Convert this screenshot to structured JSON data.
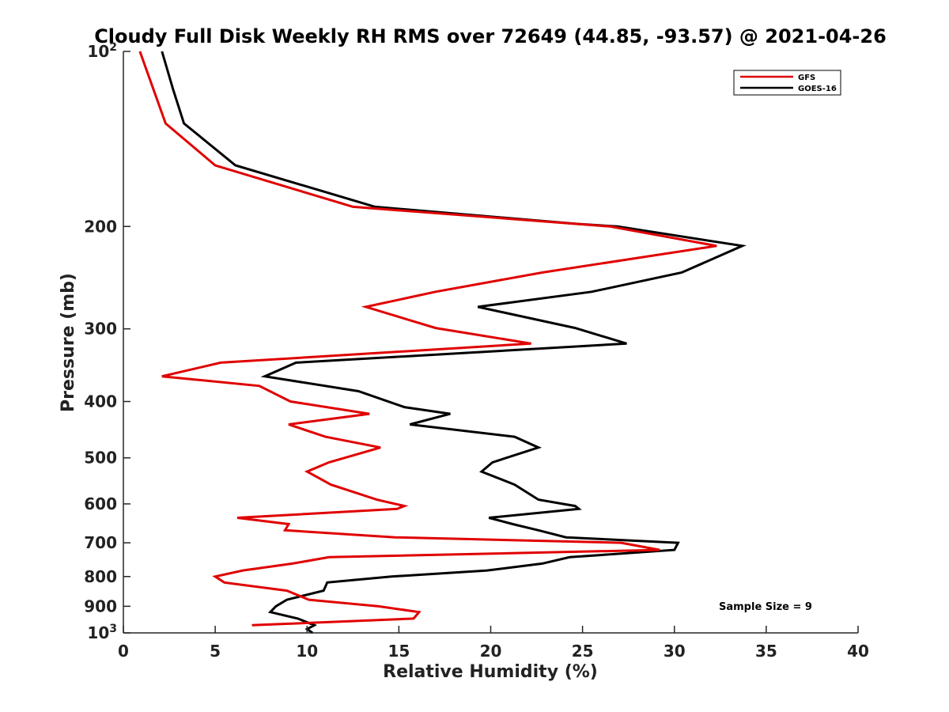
{
  "chart_data": {
    "type": "line",
    "title": "Cloudy Full Disk Weekly RH RMS over 72649 (44.85, -93.57) @ 2021-04-26",
    "xlabel": "Relative Humidity (%)",
    "ylabel": "Pressure (mb)",
    "xlim": [
      0,
      40
    ],
    "ylim": [
      100,
      1000
    ],
    "y_scale": "log",
    "y_reversed": true,
    "xticks": [
      0,
      5,
      10,
      15,
      20,
      25,
      30,
      35,
      40
    ],
    "xtick_labels": [
      "0",
      "5",
      "10",
      "15",
      "20",
      "25",
      "30",
      "35",
      "40"
    ],
    "yticks": [
      {
        "value": 100,
        "label": "10",
        "sup": "2"
      },
      {
        "value": 200,
        "label": "200"
      },
      {
        "value": 300,
        "label": "300"
      },
      {
        "value": 400,
        "label": "400"
      },
      {
        "value": 500,
        "label": "500"
      },
      {
        "value": 600,
        "label": "600"
      },
      {
        "value": 700,
        "label": "700"
      },
      {
        "value": 800,
        "label": "800"
      },
      {
        "value": 900,
        "label": "900"
      },
      {
        "value": 1000,
        "label": "10",
        "sup": "3"
      }
    ],
    "grid": false,
    "legend_position": "top-right",
    "annotation": "Sample Size = 9",
    "series": [
      {
        "name": "GFS",
        "color": "#e00000",
        "points": [
          [
            0.9,
            100
          ],
          [
            2.3,
            133
          ],
          [
            5.0,
            157
          ],
          [
            12.5,
            185
          ],
          [
            26.5,
            200
          ],
          [
            32.3,
            216
          ],
          [
            22.8,
            240
          ],
          [
            17.0,
            259
          ],
          [
            13.2,
            275
          ],
          [
            17.0,
            299
          ],
          [
            22.2,
            318
          ],
          [
            5.3,
            343
          ],
          [
            2.1,
            362
          ],
          [
            7.4,
            376
          ],
          [
            9.1,
            400
          ],
          [
            13.4,
            420
          ],
          [
            9.0,
            438
          ],
          [
            11.0,
            460
          ],
          [
            14.0,
            480
          ],
          [
            11.2,
            509
          ],
          [
            10.0,
            528
          ],
          [
            11.3,
            556
          ],
          [
            13.8,
            590
          ],
          [
            15.3,
            605
          ],
          [
            14.9,
            612
          ],
          [
            6.2,
            634
          ],
          [
            9.0,
            650
          ],
          [
            8.8,
            666
          ],
          [
            14.8,
            685
          ],
          [
            27.1,
            700
          ],
          [
            29.2,
            720
          ],
          [
            11.2,
            741
          ],
          [
            9.2,
            760
          ],
          [
            6.5,
            781
          ],
          [
            5.0,
            800
          ],
          [
            5.5,
            819
          ],
          [
            8.9,
            846
          ],
          [
            10.1,
            877
          ],
          [
            13.9,
            900
          ],
          [
            16.1,
            921
          ],
          [
            15.8,
            945
          ],
          [
            7.0,
            970
          ]
        ]
      },
      {
        "name": "GOES-16",
        "color": "#000000",
        "points": [
          [
            2.1,
            100
          ],
          [
            2.7,
            116
          ],
          [
            3.3,
            133
          ],
          [
            6.1,
            157
          ],
          [
            13.7,
            185
          ],
          [
            24.7,
            198
          ],
          [
            26.9,
            200
          ],
          [
            33.7,
            216
          ],
          [
            30.4,
            240
          ],
          [
            25.5,
            259
          ],
          [
            19.3,
            275
          ],
          [
            24.6,
            299
          ],
          [
            27.4,
            318
          ],
          [
            9.4,
            343
          ],
          [
            7.7,
            362
          ],
          [
            12.8,
            384
          ],
          [
            15.3,
            409
          ],
          [
            17.8,
            420
          ],
          [
            15.6,
            438
          ],
          [
            21.3,
            460
          ],
          [
            22.6,
            480
          ],
          [
            20.1,
            509
          ],
          [
            19.5,
            528
          ],
          [
            21.3,
            556
          ],
          [
            22.6,
            590
          ],
          [
            24.6,
            605
          ],
          [
            24.8,
            612
          ],
          [
            19.9,
            634
          ],
          [
            21.2,
            650
          ],
          [
            22.6,
            666
          ],
          [
            24.1,
            685
          ],
          [
            30.2,
            700
          ],
          [
            30.0,
            720
          ],
          [
            24.3,
            741
          ],
          [
            22.8,
            760
          ],
          [
            19.8,
            781
          ],
          [
            14.6,
            800
          ],
          [
            11.1,
            819
          ],
          [
            10.9,
            846
          ],
          [
            8.9,
            877
          ],
          [
            8.3,
            900
          ],
          [
            8.0,
            921
          ],
          [
            9.5,
            945
          ],
          [
            10.4,
            970
          ],
          [
            10.0,
            985
          ],
          [
            10.3,
            1000
          ]
        ]
      }
    ]
  }
}
